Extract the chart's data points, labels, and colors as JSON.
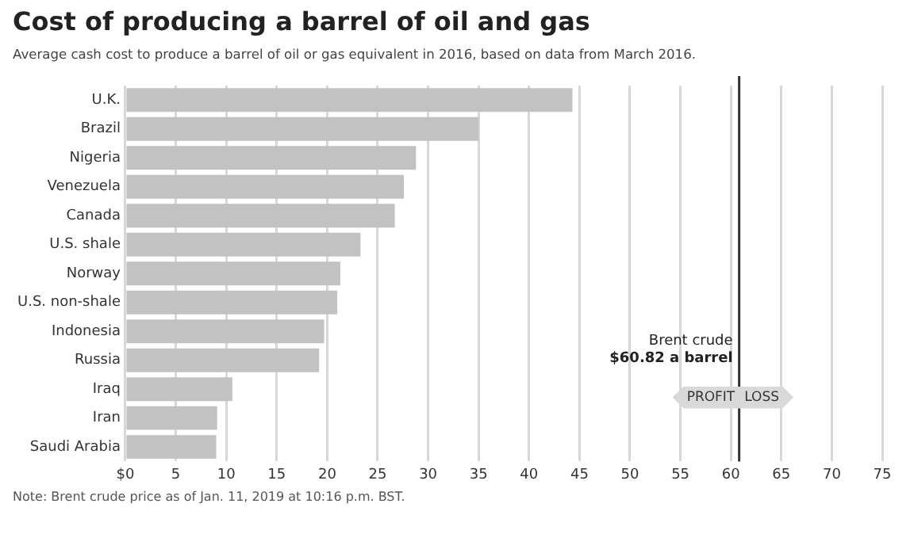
{
  "chart_data": {
    "type": "bar",
    "orientation": "horizontal",
    "title": "Cost of producing a barrel of oil and gas",
    "subtitle": "Average cash cost to produce a barrel of oil or gas equivalent in 2016, based on data from March 2016.",
    "categories": [
      "U.K.",
      "Brazil",
      "Nigeria",
      "Venezuela",
      "Canada",
      "U.S. shale",
      "Norway",
      "U.S. non-shale",
      "Indonesia",
      "Russia",
      "Iraq",
      "Iran",
      "Saudi Arabia"
    ],
    "values": [
      44.3,
      35.0,
      28.8,
      27.6,
      26.7,
      23.3,
      21.3,
      21.0,
      19.7,
      19.2,
      10.6,
      9.1,
      9.0
    ],
    "color": "#c2c2c2",
    "xlim": [
      0,
      75
    ],
    "xticks": [
      {
        "value": 0,
        "label": "$0"
      },
      5,
      10,
      15,
      20,
      25,
      30,
      35,
      40,
      45,
      50,
      55,
      60,
      65,
      70,
      75
    ],
    "grid": "x",
    "legend": false,
    "ref_lines": [
      {
        "axis": "x",
        "value": 60.82,
        "label": "Brent crude\n$60.82 a barrel",
        "color": "#333333"
      }
    ],
    "annotations": [
      "PROFIT",
      "LOSS",
      "Note: Brent crude price as of Jan. 11, 2019 at 10:16 p.m. BST."
    ]
  }
}
